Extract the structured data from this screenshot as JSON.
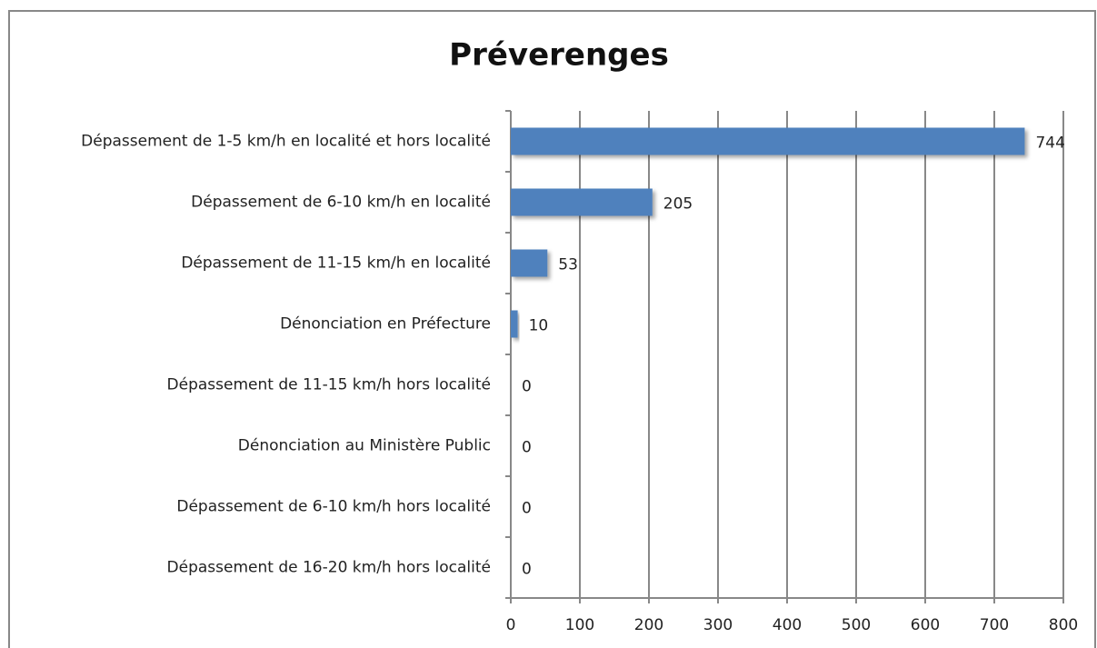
{
  "chart_data": {
    "type": "bar",
    "orientation": "horizontal",
    "title": "Préverenges",
    "categories": [
      "Dépassement de 1-5 km/h en localité et hors localité",
      "Dépassement de 6-10 km/h en localité",
      "Dépassement de 11-15 km/h en localité",
      "Dénonciation en Préfecture",
      "Dépassement de 11-15 km/h hors localité",
      "Dénonciation au Ministère Public",
      "Dépassement de 6-10 km/h hors localité",
      "Dépassement de 16-20 km/h hors localité"
    ],
    "values": [
      744,
      205,
      53,
      10,
      0,
      0,
      0,
      0
    ],
    "color": "#4f81bd",
    "xlim": [
      0,
      800
    ],
    "xticks": [
      0,
      100,
      200,
      300,
      400,
      500,
      600,
      700,
      800
    ],
    "grid": true
  }
}
